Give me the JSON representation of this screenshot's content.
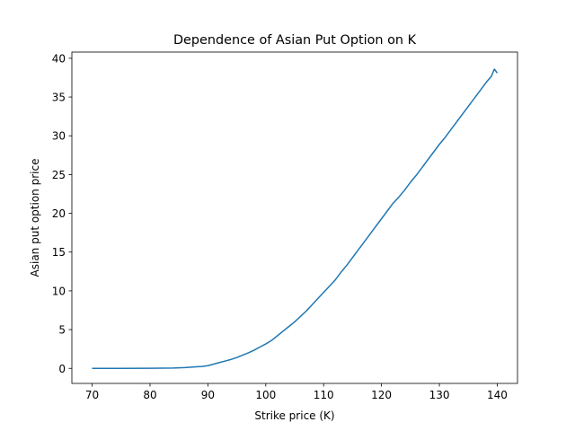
{
  "chart_data": {
    "type": "line",
    "title": "Dependence of Asian Put Option on K",
    "xlabel": "Strike price (K)",
    "ylabel": "Asian put option price",
    "xlim": [
      66.5,
      143.5
    ],
    "ylim": [
      -1.94,
      40.8
    ],
    "x_ticks": [
      70,
      80,
      90,
      100,
      110,
      120,
      130,
      140
    ],
    "y_ticks": [
      0,
      5,
      10,
      15,
      20,
      25,
      30,
      35,
      40
    ],
    "grid": false,
    "legend": "none",
    "series": [
      {
        "color": "#1f77b4",
        "x": [
          70,
          75,
          80,
          84,
          86,
          88,
          89,
          90,
          91,
          92,
          93,
          94,
          95,
          96,
          97,
          98,
          99,
          100,
          101,
          102,
          103,
          104,
          105,
          106,
          107,
          108,
          109,
          110,
          111,
          112,
          113,
          114,
          115,
          116,
          117,
          118,
          119,
          120,
          121,
          122,
          123,
          124,
          125,
          126,
          127,
          128,
          129,
          130,
          131,
          132,
          133,
          134,
          135,
          136,
          137,
          138,
          139,
          139.5,
          140
        ],
        "y": [
          0,
          0,
          0.02,
          0.05,
          0.1,
          0.2,
          0.25,
          0.35,
          0.55,
          0.75,
          0.95,
          1.15,
          1.4,
          1.7,
          2.0,
          2.35,
          2.75,
          3.15,
          3.6,
          4.2,
          4.8,
          5.4,
          6.0,
          6.7,
          7.4,
          8.2,
          9.0,
          9.8,
          10.6,
          11.4,
          12.4,
          13.3,
          14.3,
          15.3,
          16.3,
          17.3,
          18.3,
          19.3,
          20.3,
          21.3,
          22.1,
          23.0,
          24.0,
          24.9,
          25.9,
          26.9,
          27.9,
          28.9,
          29.8,
          30.8,
          31.8,
          32.8,
          33.8,
          34.8,
          35.8,
          36.8,
          37.7,
          38.6,
          38.1
        ]
      }
    ]
  }
}
